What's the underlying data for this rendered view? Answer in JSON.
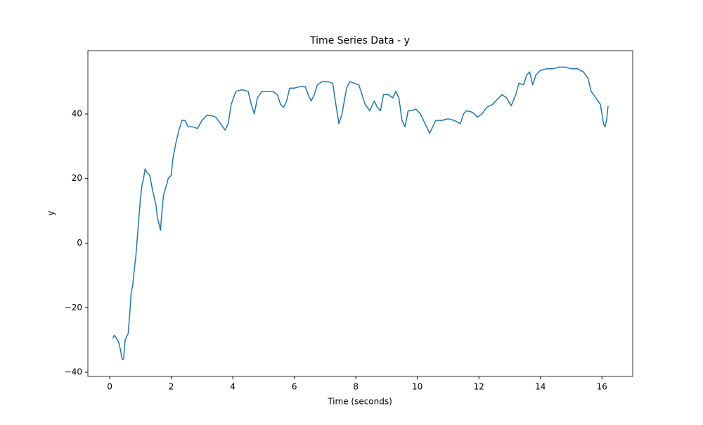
{
  "chart_data": {
    "type": "line",
    "title": "Time Series Data - y",
    "xlabel": "Time (seconds)",
    "ylabel": "y",
    "color": "#1f77b4",
    "x": [
      0.1,
      0.15,
      0.25,
      0.3,
      0.35,
      0.4,
      0.45,
      0.5,
      0.6,
      0.65,
      0.7,
      0.75,
      0.8,
      0.85,
      0.9,
      0.95,
      1.0,
      1.05,
      1.1,
      1.15,
      1.2,
      1.3,
      1.4,
      1.5,
      1.55,
      1.65,
      1.7,
      1.75,
      1.85,
      1.9,
      2.0,
      2.05,
      2.15,
      2.25,
      2.35,
      2.45,
      2.55,
      2.7,
      2.85,
      3.0,
      3.15,
      3.3,
      3.45,
      3.6,
      3.75,
      3.85,
      3.95,
      4.1,
      4.3,
      4.5,
      4.6,
      4.7,
      4.8,
      4.95,
      5.1,
      5.3,
      5.45,
      5.55,
      5.65,
      5.75,
      5.85,
      6.0,
      6.2,
      6.35,
      6.45,
      6.55,
      6.65,
      6.75,
      6.9,
      7.1,
      7.25,
      7.35,
      7.45,
      7.55,
      7.7,
      7.8,
      7.95,
      8.1,
      8.2,
      8.3,
      8.45,
      8.6,
      8.7,
      8.8,
      8.9,
      9.05,
      9.2,
      9.3,
      9.4,
      9.5,
      9.6,
      9.7,
      9.8,
      9.95,
      10.1,
      10.25,
      10.4,
      10.5,
      10.6,
      10.8,
      11.0,
      11.2,
      11.4,
      11.5,
      11.6,
      11.8,
      11.95,
      12.1,
      12.25,
      12.45,
      12.6,
      12.75,
      12.9,
      13.05,
      13.2,
      13.3,
      13.45,
      13.55,
      13.65,
      13.75,
      13.85,
      14.0,
      14.2,
      14.4,
      14.6,
      14.8,
      15.0,
      15.2,
      15.4,
      15.55,
      15.65,
      15.8,
      15.95,
      16.05,
      16.1,
      16.15,
      16.2
    ],
    "values": [
      -29.5,
      -28.5,
      -30,
      -31,
      -33,
      -36,
      -36,
      -30,
      -28,
      -22,
      -15,
      -13,
      -8,
      -4,
      2,
      8,
      14,
      18,
      20,
      23,
      22,
      21,
      16,
      12,
      8,
      4,
      10,
      15,
      18,
      20,
      21,
      26,
      31,
      35,
      38,
      38,
      36,
      36,
      35.5,
      38,
      39.5,
      39.5,
      39,
      37,
      35,
      37,
      43,
      47,
      47.5,
      47,
      43,
      40,
      45,
      47,
      47,
      47,
      46,
      43,
      42,
      44,
      48,
      48,
      48.5,
      48.5,
      46,
      44,
      46,
      49,
      50,
      50,
      49.5,
      43,
      37,
      40,
      48,
      50,
      49.5,
      49,
      46,
      43,
      41,
      44,
      42,
      41,
      46,
      46,
      45,
      47,
      45,
      38,
      36,
      41,
      41,
      41.5,
      40,
      37,
      34,
      36,
      38,
      38,
      38.5,
      38,
      37,
      40,
      41,
      40.5,
      39,
      40,
      42,
      43,
      44.5,
      46,
      45,
      42.5,
      46,
      49.5,
      49,
      52,
      53,
      49,
      52,
      53.5,
      54,
      54,
      54.5,
      54.5,
      54,
      54,
      53,
      51,
      47,
      45,
      43,
      37,
      36,
      38,
      42.5
    ],
    "xlim": [
      -0.71,
      17.0
    ],
    "ylim": [
      -41.3,
      59.6
    ],
    "xticks": [
      0,
      2,
      4,
      6,
      8,
      10,
      12,
      14,
      16
    ],
    "yticks": [
      {
        "value": -40,
        "label": "−40"
      },
      {
        "value": -20,
        "label": "−20"
      },
      0,
      20,
      40
    ]
  }
}
